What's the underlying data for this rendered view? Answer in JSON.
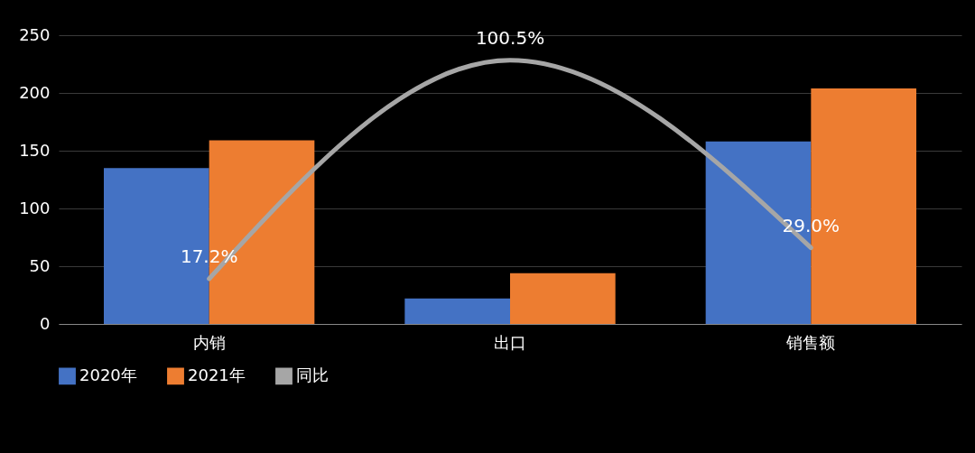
{
  "chart_data": {
    "type": "bar",
    "categories": [
      "内销",
      "出口",
      "销售额"
    ],
    "series": [
      {
        "name": "2020年",
        "color": "#4472c4",
        "values": [
          135,
          22,
          158
        ]
      },
      {
        "name": "2021年",
        "color": "#ed7d31",
        "values": [
          159,
          44,
          204
        ]
      },
      {
        "name": "同比",
        "type": "line",
        "axis": "y2",
        "color": "#a6a6a6",
        "values": [
          17.2,
          100.5,
          29.0
        ],
        "value_labels": [
          "17.2%",
          "100.5%",
          "29.0%"
        ]
      }
    ],
    "ylim": [
      0,
      250
    ],
    "yticks": [
      0,
      50,
      100,
      150,
      200,
      250
    ],
    "grid": "y",
    "legend": "bottom",
    "marker": "none"
  }
}
